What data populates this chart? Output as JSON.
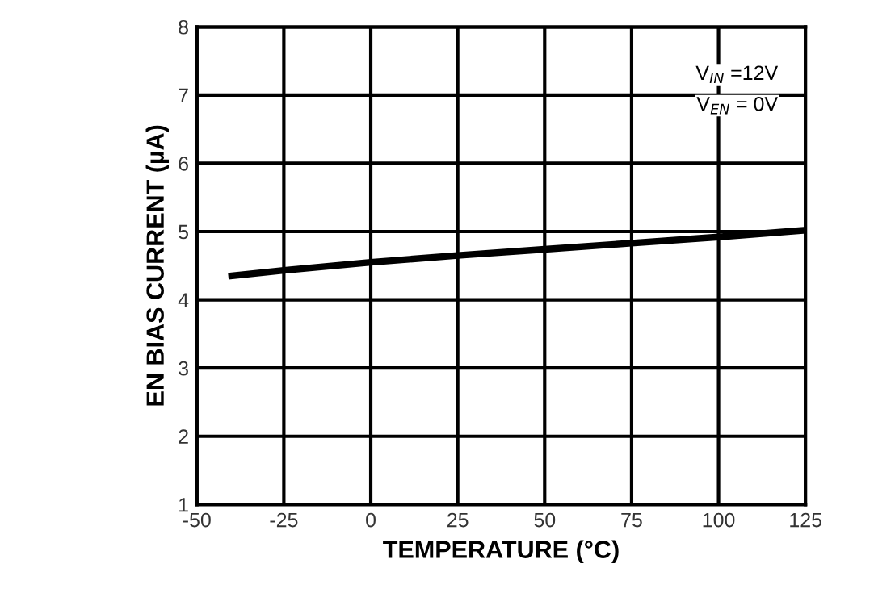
{
  "chart_data": {
    "type": "line",
    "xlabel": "TEMPERATURE (°C)",
    "ylabel": "EN BIAS CURRENT (µA)",
    "x": [
      -40,
      -25,
      0,
      25,
      50,
      75,
      100,
      125
    ],
    "series": [
      {
        "color": "#000000",
        "values": [
          4.35,
          4.43,
          4.55,
          4.65,
          4.74,
          4.83,
          4.92,
          5.02
        ]
      }
    ],
    "xlim": [
      -50,
      125
    ],
    "xticks": [
      -50,
      -25,
      0,
      25,
      50,
      75,
      100,
      125
    ],
    "ylim": [
      1,
      8
    ],
    "yticks": [
      1,
      2,
      3,
      4,
      5,
      6,
      7,
      8
    ],
    "grid": true,
    "legend": false,
    "marker": "none",
    "line_style": "solid",
    "annotations": [
      "V$_{IN}$ =12V",
      "V$_{EN}$ = 0V"
    ]
  }
}
